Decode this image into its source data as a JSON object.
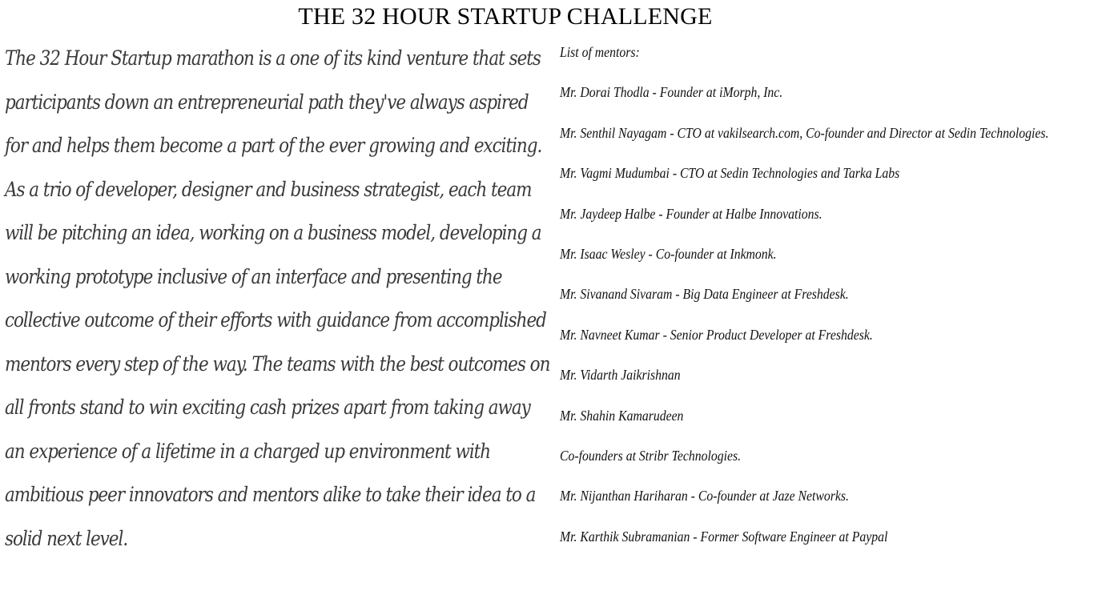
{
  "page": {
    "title": "THE 32 HOUR  STARTUP CHALLENGE"
  },
  "intro": {
    "lines": [
      "The 32 Hour Startup marathon is a one of its kind venture that sets",
      "participants down an entrepreneurial path they've always aspired",
      "for and helps them become a part of the ever growing and exciting.",
      "As a trio of developer, designer and business strategist, each team",
      "will be pitching an idea, working on a business model, developing a",
      "working prototype inclusive of an interface and presenting the",
      "collective outcome of their efforts with guidance from accomplished",
      "mentors every step of the way. The teams with the best outcomes on",
      "all fronts stand to win exciting cash prizes apart from taking away",
      "an experience of a lifetime in a charged up environment with",
      "ambitious peer innovators and mentors alike to take their idea to a",
      "solid next level."
    ]
  },
  "mentors": {
    "heading": "List of mentors:",
    "lines": [
      "Mr. Dorai Thodla - Founder at iMorph, Inc.",
      "Mr. Senthil Nayagam - CTO at vakilsearch.com, Co-founder and Director at Sedin Technologies.",
      "Mr. Vagmi Mudumbai  - CTO at Sedin Technologies and Tarka Labs",
      "Mr. Jaydeep Halbe - Founder at Halbe Innovations.",
      "Mr. Isaac Wesley - Co-founder at Inkmonk.",
      "Mr. Sivanand Sivaram - Big Data Engineer at Freshdesk.",
      "Mr. Navneet Kumar - Senior Product  Developer at Freshdesk.",
      "Mr. Vidarth Jaikrishnan",
      "Mr. Shahin Kamarudeen",
      "Co-founders at Stribr Technologies.",
      "Mr. Nijanthan Hariharan - Co-founder at Jaze Networks.",
      "Mr. Karthik Subramanian  - Former Software Engineer at Paypal"
    ]
  }
}
